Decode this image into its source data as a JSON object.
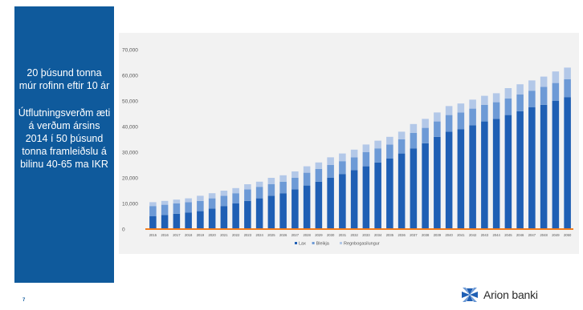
{
  "panel": {
    "text1": "20 þúsund tonna múr rofinn eftir 10 ár",
    "text2": "Útflutningsverðm æti á verðum ársins 2014 í 50 þúsund tonna framleiðslu á bilinu 40-65 ma IKR"
  },
  "page_number": "7",
  "brand": {
    "name": "Arion banki"
  },
  "colors": {
    "panel_bg": "#0f5a9c",
    "lax": "#1f5fb4",
    "bleikja": "#6d9ad6",
    "regnbogasilungur": "#b3c8e8",
    "baseline": "#f07d1e",
    "grid": "#d9d9d9"
  },
  "chart_data": {
    "type": "bar",
    "stacked": true,
    "categories": [
      "2015",
      "2016",
      "2017",
      "2018",
      "2019",
      "2020",
      "2021",
      "2022",
      "2023",
      "2024",
      "2025",
      "2026",
      "2027",
      "2028",
      "2029",
      "2030",
      "2031",
      "2032",
      "2033",
      "2034",
      "2035",
      "2036",
      "2037",
      "2038",
      "2039",
      "2040",
      "2041",
      "2042",
      "2043",
      "2044",
      "2045",
      "2046",
      "2047",
      "2048",
      "2049",
      "2050"
    ],
    "series": [
      {
        "name": "Lax",
        "values": [
          5000,
          5500,
          6000,
          6500,
          7000,
          8000,
          9000,
          10000,
          11000,
          12000,
          13000,
          14000,
          15500,
          17000,
          18500,
          20000,
          21500,
          23000,
          24500,
          26000,
          27500,
          29500,
          31500,
          33500,
          36000,
          38000,
          39000,
          40500,
          42000,
          43000,
          44500,
          46000,
          47500,
          48500,
          50000,
          51500
        ]
      },
      {
        "name": "Bleikja",
        "values": [
          4000,
          4000,
          4000,
          4000,
          4000,
          4000,
          4000,
          4000,
          4500,
          4500,
          4500,
          4500,
          4500,
          5000,
          5000,
          5000,
          5000,
          5000,
          5500,
          5500,
          5500,
          5500,
          6000,
          6000,
          6000,
          6500,
          6500,
          6500,
          6500,
          6500,
          6500,
          6500,
          6500,
          7000,
          7000,
          7000
        ]
      },
      {
        "name": "Regnbogasilungur",
        "values": [
          1500,
          1500,
          1500,
          1500,
          2000,
          2000,
          2000,
          2000,
          2000,
          2000,
          2500,
          2500,
          2500,
          2500,
          2500,
          3000,
          3000,
          3000,
          3000,
          3000,
          3000,
          3000,
          3500,
          3500,
          3500,
          3500,
          3500,
          3500,
          3500,
          3500,
          4000,
          4000,
          4000,
          4000,
          4500,
          4500
        ]
      }
    ],
    "ylim": [
      0,
      70000
    ],
    "yticks": [
      "0",
      "10,000",
      "20,000",
      "30,000",
      "40,000",
      "50,000",
      "60,000",
      "70,000"
    ],
    "grid": false,
    "legend_position": "bottom"
  }
}
